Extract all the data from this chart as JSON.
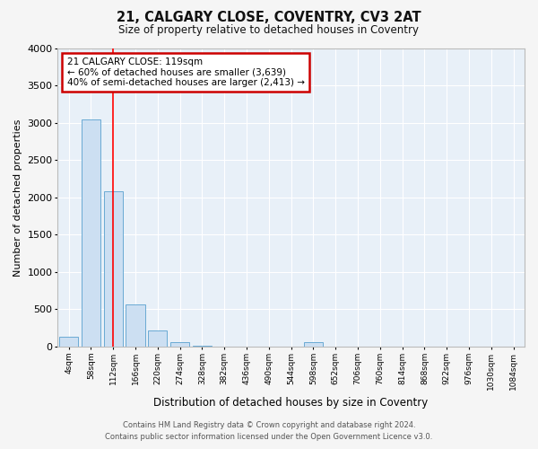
{
  "title": "21, CALGARY CLOSE, COVENTRY, CV3 2AT",
  "subtitle": "Size of property relative to detached houses in Coventry",
  "xlabel": "Distribution of detached houses by size in Coventry",
  "ylabel": "Number of detached properties",
  "bin_labels": [
    "4sqm",
    "58sqm",
    "112sqm",
    "166sqm",
    "220sqm",
    "274sqm",
    "328sqm",
    "382sqm",
    "436sqm",
    "490sqm",
    "544sqm",
    "598sqm",
    "652sqm",
    "706sqm",
    "760sqm",
    "814sqm",
    "868sqm",
    "922sqm",
    "976sqm",
    "1030sqm",
    "1084sqm"
  ],
  "bar_heights": [
    130,
    3050,
    2080,
    570,
    220,
    60,
    15,
    5,
    2,
    0,
    0,
    60,
    0,
    0,
    0,
    0,
    0,
    0,
    0,
    0,
    0
  ],
  "bar_color": "#ccdff2",
  "bar_edge_color": "#6aaad4",
  "fig_bg_color": "#f5f5f5",
  "plot_bg_color": "#e8f0f8",
  "grid_color": "#ffffff",
  "red_line_x": 2,
  "annotation_text": "21 CALGARY CLOSE: 119sqm\n← 60% of detached houses are smaller (3,639)\n40% of semi-detached houses are larger (2,413) →",
  "annotation_box_color": "#ffffff",
  "annotation_box_edge_color": "#cc0000",
  "ylim": [
    0,
    4000
  ],
  "yticks": [
    0,
    500,
    1000,
    1500,
    2000,
    2500,
    3000,
    3500,
    4000
  ],
  "footer_line1": "Contains HM Land Registry data © Crown copyright and database right 2024.",
  "footer_line2": "Contains public sector information licensed under the Open Government Licence v3.0."
}
